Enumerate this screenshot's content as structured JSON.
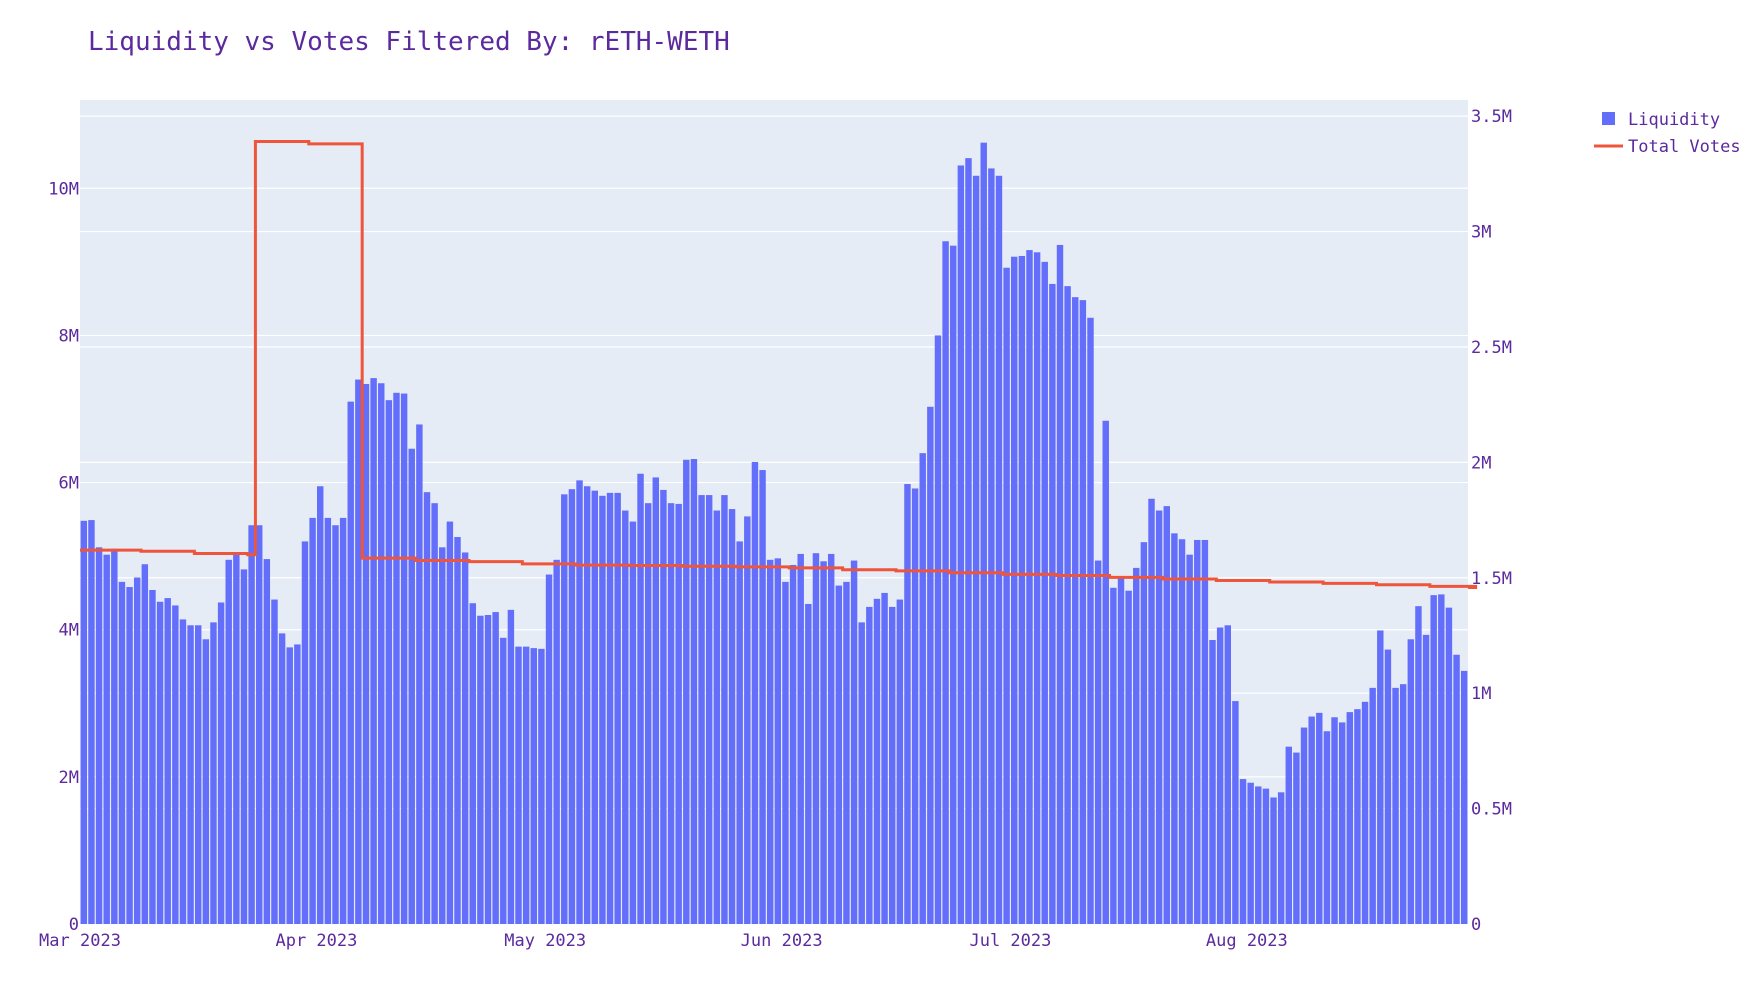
{
  "chart_data": {
    "type": "bar",
    "title": "Liquidity vs Votes Filtered By: rETH-WETH",
    "colors": {
      "bar": "#636efa",
      "line": "#ef553b",
      "plot_bg": "#e5ecf6",
      "text": "#5b2a9d"
    },
    "x_start": "2023-03-01",
    "x_ticks": [
      "Mar 2023",
      "Apr 2023",
      "May 2023",
      "Jun 2023",
      "Jul 2023",
      "Aug 2023"
    ],
    "y_left": {
      "range": [
        0,
        11200000
      ],
      "tick_labels": [
        "0",
        "2M",
        "4M",
        "6M",
        "8M",
        "10M"
      ],
      "tick_values": [
        0,
        2000000,
        4000000,
        6000000,
        8000000,
        10000000
      ]
    },
    "y_right": {
      "range": [
        0,
        3570000
      ],
      "tick_labels": [
        "0",
        "0.5M",
        "1M",
        "1.5M",
        "2M",
        "2.5M",
        "3M",
        "3.5M"
      ],
      "tick_values": [
        0,
        500000,
        1000000,
        1500000,
        2000000,
        2500000,
        3000000,
        3500000
      ]
    },
    "legend_position": "top-right",
    "grid": true,
    "series": [
      {
        "name": "Liquidity",
        "type": "bar",
        "axis": "left",
        "values": [
          5.48,
          5.49,
          5.12,
          5.02,
          5.1,
          4.65,
          4.58,
          4.71,
          4.89,
          4.54,
          4.38,
          4.43,
          4.33,
          4.14,
          4.06,
          4.06,
          3.87,
          4.1,
          4.37,
          4.95,
          5.05,
          4.82,
          5.42,
          5.42,
          4.96,
          4.41,
          3.95,
          3.76,
          3.8,
          5.2,
          5.52,
          5.95,
          5.52,
          5.42,
          5.52,
          7.1,
          7.4,
          7.34,
          7.42,
          7.35,
          7.12,
          7.22,
          7.21,
          6.46,
          6.79,
          5.87,
          5.72,
          5.12,
          5.47,
          5.26,
          5.05,
          4.36,
          4.19,
          4.2,
          4.24,
          3.89,
          4.27,
          3.77,
          3.77,
          3.75,
          3.74,
          4.75,
          4.95,
          5.84,
          5.91,
          6.03,
          5.95,
          5.89,
          5.82,
          5.86,
          5.86,
          5.62,
          5.47,
          6.12,
          5.72,
          6.07,
          5.9,
          5.72,
          5.71,
          6.31,
          6.32,
          5.83,
          5.83,
          5.62,
          5.83,
          5.64,
          5.2,
          5.54,
          6.28,
          6.17,
          4.95,
          4.97,
          4.65,
          4.88,
          5.03,
          4.35,
          5.04,
          4.93,
          5.03,
          4.6,
          4.65,
          4.94,
          4.1,
          4.31,
          4.42,
          4.5,
          4.31,
          4.41,
          5.98,
          5.92,
          6.4,
          7.03,
          8.0,
          9.28,
          9.22,
          10.31,
          10.41,
          10.17,
          10.62,
          10.27,
          10.17,
          8.92,
          9.07,
          9.08,
          9.16,
          9.13,
          9.0,
          8.7,
          9.23,
          8.67,
          8.52,
          8.48,
          8.24,
          4.94,
          6.84,
          4.57,
          4.72,
          4.53,
          4.84,
          5.19,
          5.78,
          5.62,
          5.68,
          5.31,
          5.23,
          5.02,
          5.22,
          5.22,
          3.86,
          4.03,
          4.06,
          3.03,
          1.97,
          1.92,
          1.87,
          1.84,
          1.72,
          1.79,
          2.41,
          2.33,
          2.67,
          2.82,
          2.87,
          2.62,
          2.81,
          2.74,
          2.88,
          2.92,
          3.02,
          3.21,
          3.99,
          3.73,
          3.21,
          3.26,
          3.87,
          4.32,
          3.93,
          4.47,
          4.48,
          4.3,
          3.66,
          3.44
        ]
      },
      {
        "name": "Total Votes",
        "type": "line",
        "axis": "right",
        "shape": "step",
        "points": [
          {
            "date": "2023-03-01",
            "value": 1620000
          },
          {
            "date": "2023-03-09",
            "value": 1615000
          },
          {
            "date": "2023-03-16",
            "value": 1605000
          },
          {
            "date": "2023-03-23",
            "value": 1600000
          },
          {
            "date": "2023-03-24",
            "value": 3390000
          },
          {
            "date": "2023-03-31",
            "value": 3380000
          },
          {
            "date": "2023-04-07",
            "value": 1585000
          },
          {
            "date": "2023-04-14",
            "value": 1575000
          },
          {
            "date": "2023-04-21",
            "value": 1570000
          },
          {
            "date": "2023-04-28",
            "value": 1560000
          },
          {
            "date": "2023-05-05",
            "value": 1555000
          },
          {
            "date": "2023-05-12",
            "value": 1553000
          },
          {
            "date": "2023-05-19",
            "value": 1550000
          },
          {
            "date": "2023-05-26",
            "value": 1547000
          },
          {
            "date": "2023-06-02",
            "value": 1543000
          },
          {
            "date": "2023-06-09",
            "value": 1535000
          },
          {
            "date": "2023-06-16",
            "value": 1530000
          },
          {
            "date": "2023-06-23",
            "value": 1522000
          },
          {
            "date": "2023-06-30",
            "value": 1515000
          },
          {
            "date": "2023-07-07",
            "value": 1510000
          },
          {
            "date": "2023-07-14",
            "value": 1502000
          },
          {
            "date": "2023-07-21",
            "value": 1495000
          },
          {
            "date": "2023-07-28",
            "value": 1488000
          },
          {
            "date": "2023-08-04",
            "value": 1482000
          },
          {
            "date": "2023-08-11",
            "value": 1476000
          },
          {
            "date": "2023-08-18",
            "value": 1470000
          },
          {
            "date": "2023-08-25",
            "value": 1463000
          },
          {
            "date": "2023-08-31",
            "value": 1458000
          }
        ]
      }
    ]
  }
}
